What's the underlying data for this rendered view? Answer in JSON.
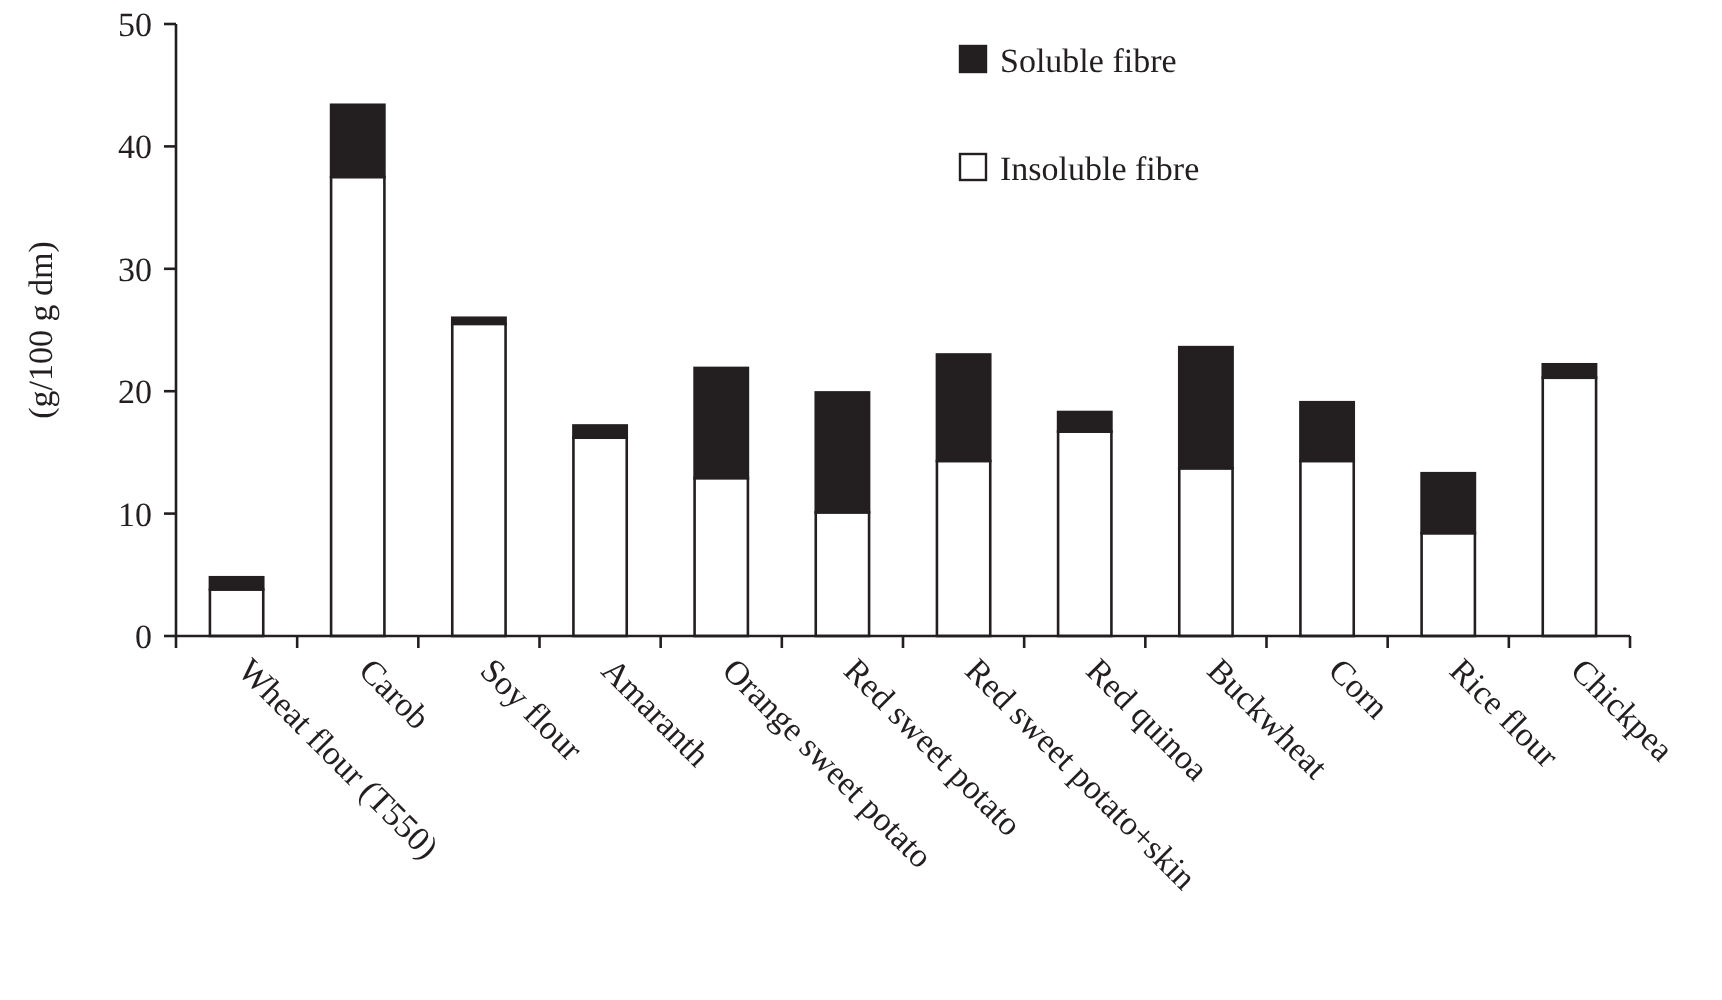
{
  "chart_data": {
    "type": "bar",
    "stacked": true,
    "ylabel": "(g/100 g dm)",
    "categories": [
      "Wheat flour (T550)",
      "Carob",
      "Soy flour",
      "Amaranth",
      "Orange sweet potato",
      "Red sweet potato",
      "Red sweet potato+skin",
      "Red quinoa",
      "Buckwheat",
      "Corn",
      "Rice flour",
      "Chickpea"
    ],
    "series": [
      {
        "name": "Insoluble fibre",
        "color": "#ffffff",
        "values": [
          3.8,
          37.5,
          25.5,
          16.2,
          12.9,
          10.1,
          14.3,
          16.7,
          13.7,
          14.3,
          8.4,
          21.1
        ]
      },
      {
        "name": "Soluble fibre",
        "color": "#231f20",
        "values": [
          1.0,
          5.9,
          0.5,
          1.0,
          9.0,
          9.8,
          8.7,
          1.6,
          9.9,
          4.8,
          4.9,
          1.1
        ]
      }
    ],
    "ylim": [
      0,
      50
    ],
    "yticks": [
      0,
      10,
      20,
      30,
      40,
      50
    ],
    "grid": false,
    "legend": "top right"
  }
}
